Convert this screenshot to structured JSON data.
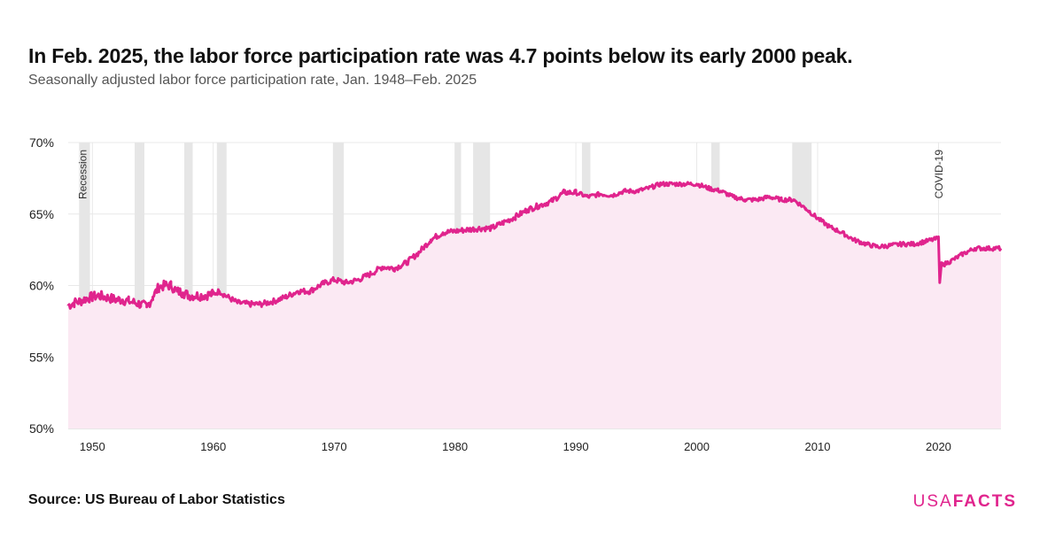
{
  "header": {
    "title": "In Feb. 2025, the labor force participation rate was 4.7 points below its early 2000 peak.",
    "subtitle": "Seasonally adjusted labor force participation rate, Jan. 1948–Feb. 2025"
  },
  "footer": {
    "source_label": "Source:",
    "source_value": "US Bureau of Labor Statistics",
    "logo_part1": "USA",
    "logo_part2": "FACTS"
  },
  "colors": {
    "line": "#e0248d",
    "area": "#fbe9f3",
    "recession": "#e6e6e6",
    "grid": "#e8e8e8",
    "logo": "#e0248d"
  },
  "chart_data": {
    "type": "area",
    "title": "In Feb. 2025, the labor force participation rate was 4.7 points below its early 2000 peak.",
    "subtitle": "Seasonally adjusted labor force participation rate, Jan. 1948–Feb. 2025",
    "xlabel": "",
    "ylabel": "",
    "xlim": [
      1948.0,
      2025.17
    ],
    "ylim": [
      50,
      70
    ],
    "y_ticks": [
      50,
      55,
      60,
      65,
      70
    ],
    "y_tick_labels": [
      "50%",
      "55%",
      "60%",
      "65%",
      "70%"
    ],
    "x_ticks": [
      1950,
      1960,
      1970,
      1980,
      1990,
      2000,
      2010,
      2020
    ],
    "x_tick_labels": [
      "1950",
      "1960",
      "1970",
      "1980",
      "1990",
      "2000",
      "2010",
      "2020"
    ],
    "grid": true,
    "series": [
      {
        "values_note_unit": "percent",
        "x": [
          1948.0,
          1948.5,
          1949.0,
          1949.5,
          1950.0,
          1950.5,
          1951.0,
          1951.5,
          1952.0,
          1952.5,
          1953.0,
          1953.5,
          1954.0,
          1954.5,
          1955.0,
          1955.5,
          1956.0,
          1956.5,
          1957.0,
          1957.5,
          1958.0,
          1959.0,
          1960.0,
          1960.5,
          1961.0,
          1962.0,
          1963.0,
          1964.0,
          1965.0,
          1966.0,
          1967.0,
          1968.0,
          1969.0,
          1970.0,
          1971.0,
          1972.0,
          1973.0,
          1974.0,
          1975.0,
          1976.0,
          1977.0,
          1978.0,
          1979.0,
          1980.0,
          1981.0,
          1982.0,
          1983.0,
          1984.0,
          1985.0,
          1986.0,
          1987.0,
          1988.0,
          1989.0,
          1990.0,
          1991.0,
          1992.0,
          1993.0,
          1994.0,
          1995.0,
          1996.0,
          1997.0,
          1998.0,
          1999.0,
          2000.0,
          2001.0,
          2002.0,
          2003.0,
          2004.0,
          2005.0,
          2006.0,
          2007.0,
          2008.0,
          2009.0,
          2010.0,
          2011.0,
          2012.0,
          2013.0,
          2014.0,
          2015.0,
          2016.0,
          2017.0,
          2018.0,
          2019.0,
          2020.0,
          2020.1,
          2020.25,
          2020.5,
          2021.0,
          2022.0,
          2023.0,
          2024.0,
          2025.17
        ],
        "values": [
          58.6,
          58.8,
          58.9,
          59.1,
          59.2,
          59.3,
          59.2,
          59.1,
          59.0,
          59.0,
          58.9,
          58.8,
          58.7,
          58.5,
          59.2,
          59.9,
          60.0,
          60.0,
          59.6,
          59.5,
          59.3,
          59.3,
          59.4,
          59.6,
          59.3,
          58.8,
          58.7,
          58.7,
          58.9,
          59.2,
          59.6,
          59.6,
          60.1,
          60.4,
          60.2,
          60.4,
          60.8,
          61.3,
          61.2,
          61.6,
          62.3,
          63.2,
          63.7,
          63.8,
          63.9,
          64.0,
          64.0,
          64.4,
          64.8,
          65.3,
          65.6,
          65.9,
          66.5,
          66.5,
          66.2,
          66.4,
          66.3,
          66.6,
          66.6,
          66.8,
          67.1,
          67.1,
          67.1,
          67.1,
          66.8,
          66.6,
          66.2,
          66.0,
          66.0,
          66.2,
          66.0,
          66.0,
          65.4,
          64.7,
          64.1,
          63.7,
          63.2,
          62.9,
          62.7,
          62.8,
          62.9,
          62.9,
          63.1,
          63.3,
          60.2,
          61.6,
          61.5,
          61.7,
          62.2,
          62.6,
          62.6,
          62.6
        ]
      }
    ],
    "recessions": [
      [
        1948.9,
        1949.8
      ],
      [
        1953.5,
        1954.3
      ],
      [
        1957.6,
        1958.3
      ],
      [
        1960.3,
        1961.1
      ],
      [
        1969.9,
        1970.8
      ],
      [
        1980.0,
        1980.5
      ],
      [
        1981.5,
        1982.9
      ],
      [
        1990.5,
        1991.2
      ],
      [
        2001.2,
        2001.9
      ],
      [
        2007.9,
        2009.5
      ]
    ],
    "annotations": [
      {
        "label": "Recession",
        "x": 1949.3
      },
      {
        "label": "COVID-19",
        "x": 2020.1
      }
    ]
  }
}
